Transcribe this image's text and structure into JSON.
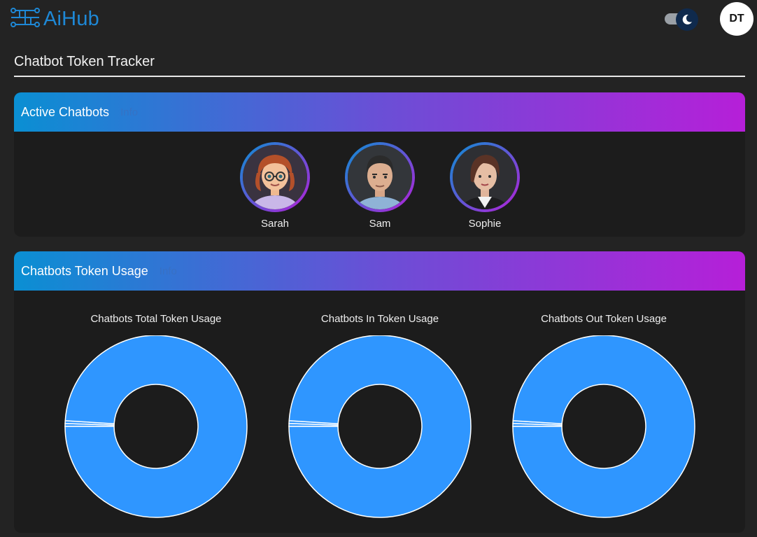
{
  "app": {
    "name": "AiHub",
    "user_initials": "DT"
  },
  "page": {
    "title": "Chatbot Token Tracker"
  },
  "active_card": {
    "title": "Active Chatbots",
    "tag": "Info",
    "bots": [
      {
        "name": "Sarah"
      },
      {
        "name": "Sam"
      },
      {
        "name": "Sophie"
      }
    ]
  },
  "usage_card": {
    "title": "Chatbots Token Usage",
    "tag": "Info",
    "charts": [
      {
        "title": "Chatbots Total Token Usage"
      },
      {
        "title": "Chatbots In Token Usage"
      },
      {
        "title": "Chatbots Out Token Usage"
      }
    ]
  },
  "colors": {
    "accent": "#1e88d6",
    "donut": "#2f96ff",
    "gradient_start": "#0a8fd3",
    "gradient_end": "#b61fd8"
  },
  "chart_data": [
    {
      "type": "pie",
      "title": "Chatbots Total Token Usage",
      "categories": [
        "Sarah",
        "Sam",
        "Sophie"
      ],
      "values": [
        0.5,
        0.5,
        99
      ]
    },
    {
      "type": "pie",
      "title": "Chatbots In Token Usage",
      "categories": [
        "Sarah",
        "Sam",
        "Sophie"
      ],
      "values": [
        0.5,
        0.5,
        99
      ]
    },
    {
      "type": "pie",
      "title": "Chatbots Out Token Usage",
      "categories": [
        "Sarah",
        "Sam",
        "Sophie"
      ],
      "values": [
        0.5,
        0.5,
        99
      ]
    }
  ]
}
